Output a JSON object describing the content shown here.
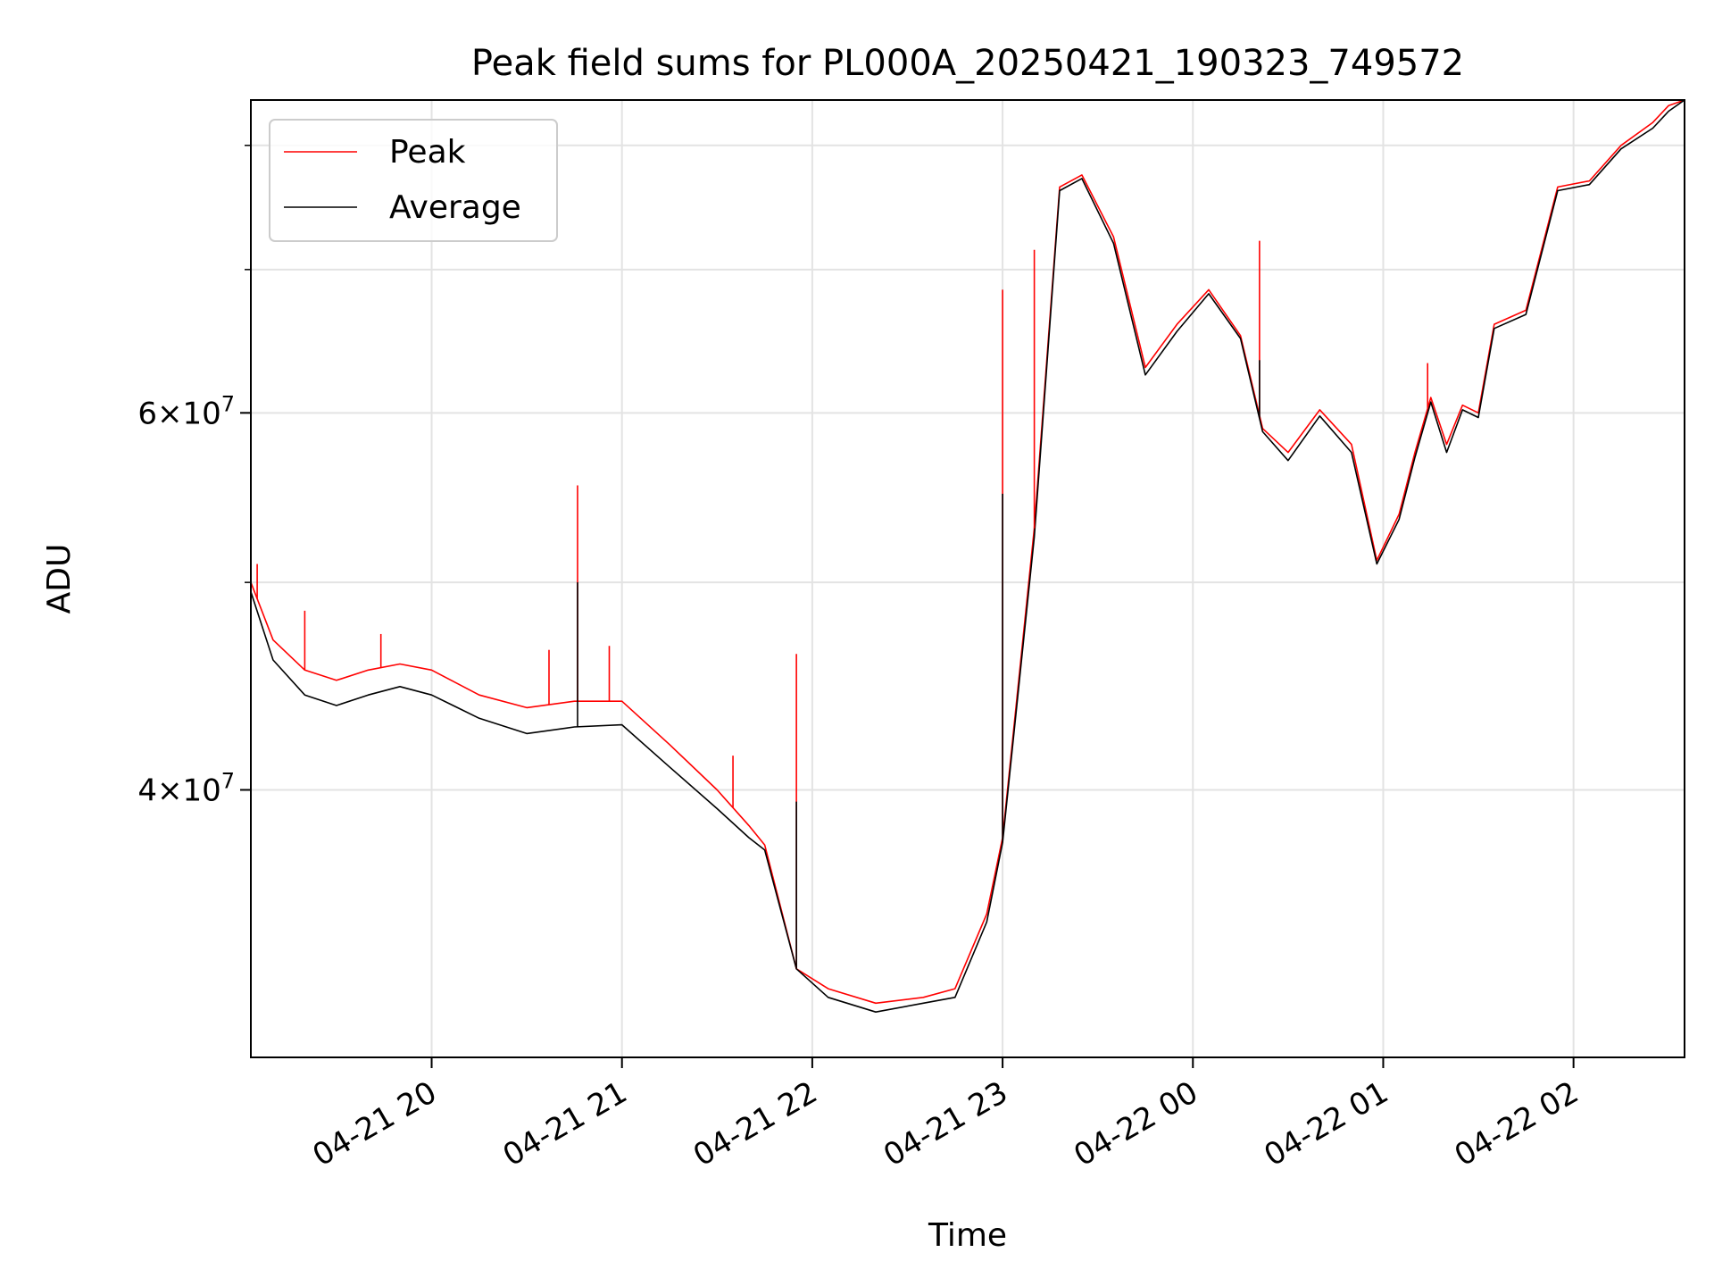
{
  "chart_data": {
    "type": "line",
    "title": "Peak field sums for PL000A_20250421_190323_749572",
    "xlabel": "Time",
    "ylabel": "ADU",
    "y_scale": "log",
    "ylim": [
      30000000,
      84000000
    ],
    "xlim": [
      "2025-04-21 19:03",
      "2025-04-22 02:35"
    ],
    "grid": true,
    "legend_position": "top-left",
    "x_ticks": [
      {
        "value": "2025-04-21 20:00",
        "label": "04-21 20"
      },
      {
        "value": "2025-04-21 21:00",
        "label": "04-21 21"
      },
      {
        "value": "2025-04-21 22:00",
        "label": "04-21 22"
      },
      {
        "value": "2025-04-21 23:00",
        "label": "04-21 23"
      },
      {
        "value": "2025-04-22 00:00",
        "label": "04-22 00"
      },
      {
        "value": "2025-04-22 01:00",
        "label": "04-22 01"
      },
      {
        "value": "2025-04-22 02:00",
        "label": "04-22 02"
      }
    ],
    "y_ticks_labeled": [
      {
        "value": 40000000,
        "mantissa": "4",
        "base": "10",
        "exponent": "7"
      },
      {
        "value": 60000000,
        "mantissa": "6",
        "base": "10",
        "exponent": "7"
      }
    ],
    "y_ticks_minor": [
      50000000,
      70000000,
      80000000
    ],
    "series": [
      {
        "name": "Peak",
        "color": "#ff0000",
        "x": [
          "2025-04-21 19:03",
          "2025-04-21 19:10",
          "2025-04-21 19:20",
          "2025-04-21 19:30",
          "2025-04-21 19:40",
          "2025-04-21 19:50",
          "2025-04-21 20:00",
          "2025-04-21 20:15",
          "2025-04-21 20:30",
          "2025-04-21 20:45",
          "2025-04-21 21:00",
          "2025-04-21 21:15",
          "2025-04-21 21:30",
          "2025-04-21 21:40",
          "2025-04-21 21:45",
          "2025-04-21 21:55",
          "2025-04-21 22:05",
          "2025-04-21 22:20",
          "2025-04-21 22:35",
          "2025-04-21 22:45",
          "2025-04-21 22:55",
          "2025-04-21 23:00",
          "2025-04-21 23:10",
          "2025-04-21 23:18",
          "2025-04-21 23:25",
          "2025-04-21 23:35",
          "2025-04-21 23:45",
          "2025-04-21 23:55",
          "2025-04-22 00:05",
          "2025-04-22 00:15",
          "2025-04-22 00:22",
          "2025-04-22 00:30",
          "2025-04-22 00:40",
          "2025-04-22 00:50",
          "2025-04-22 00:58",
          "2025-04-22 01:05",
          "2025-04-22 01:10",
          "2025-04-22 01:15",
          "2025-04-22 01:20",
          "2025-04-22 01:25",
          "2025-04-22 01:30",
          "2025-04-22 01:35",
          "2025-04-22 01:45",
          "2025-04-22 01:55",
          "2025-04-22 02:05",
          "2025-04-22 02:15",
          "2025-04-22 02:25",
          "2025-04-22 02:30",
          "2025-04-22 02:35"
        ],
        "values": [
          50000000,
          47000000,
          45500000,
          45000000,
          45500000,
          45800000,
          45500000,
          44300000,
          43700000,
          44000000,
          44000000,
          42000000,
          40000000,
          38500000,
          37700000,
          33000000,
          32300000,
          31800000,
          32000000,
          32300000,
          35000000,
          38000000,
          53000000,
          76500000,
          77500000,
          72500000,
          63000000,
          66000000,
          68500000,
          65200000,
          59000000,
          57500000,
          60200000,
          58000000,
          51200000,
          53800000,
          57500000,
          61000000,
          58000000,
          60500000,
          60000000,
          66000000,
          67000000,
          76500000,
          77000000,
          80000000,
          82000000,
          83500000,
          84000000
        ]
      },
      {
        "name": "Average",
        "color": "#000000",
        "x": [
          "2025-04-21 19:03",
          "2025-04-21 19:10",
          "2025-04-21 19:20",
          "2025-04-21 19:30",
          "2025-04-21 19:40",
          "2025-04-21 19:50",
          "2025-04-21 20:00",
          "2025-04-21 20:15",
          "2025-04-21 20:30",
          "2025-04-21 20:45",
          "2025-04-21 21:00",
          "2025-04-21 21:15",
          "2025-04-21 21:30",
          "2025-04-21 21:40",
          "2025-04-21 21:45",
          "2025-04-21 21:55",
          "2025-04-21 22:05",
          "2025-04-21 22:20",
          "2025-04-21 22:35",
          "2025-04-21 22:45",
          "2025-04-21 22:55",
          "2025-04-21 23:00",
          "2025-04-21 23:10",
          "2025-04-21 23:18",
          "2025-04-21 23:25",
          "2025-04-21 23:35",
          "2025-04-21 23:45",
          "2025-04-21 23:55",
          "2025-04-22 00:05",
          "2025-04-22 00:15",
          "2025-04-22 00:22",
          "2025-04-22 00:30",
          "2025-04-22 00:40",
          "2025-04-22 00:50",
          "2025-04-22 00:58",
          "2025-04-22 01:05",
          "2025-04-22 01:10",
          "2025-04-22 01:15",
          "2025-04-22 01:20",
          "2025-04-22 01:25",
          "2025-04-22 01:30",
          "2025-04-22 01:35",
          "2025-04-22 01:45",
          "2025-04-22 01:55",
          "2025-04-22 02:05",
          "2025-04-22 02:15",
          "2025-04-22 02:25",
          "2025-04-22 02:30",
          "2025-04-22 02:35"
        ],
        "values": [
          49500000,
          46000000,
          44300000,
          43800000,
          44300000,
          44700000,
          44300000,
          43200000,
          42500000,
          42800000,
          42900000,
          41000000,
          39200000,
          38000000,
          37500000,
          33000000,
          32000000,
          31500000,
          31800000,
          32000000,
          34700000,
          37800000,
          52500000,
          76200000,
          77200000,
          72000000,
          62500000,
          65500000,
          68200000,
          65000000,
          58800000,
          57000000,
          59800000,
          57500000,
          51000000,
          53500000,
          57200000,
          60700000,
          57500000,
          60200000,
          59700000,
          65700000,
          66700000,
          76200000,
          76700000,
          79700000,
          81500000,
          83000000,
          84000000
        ]
      }
    ],
    "spikes": [
      {
        "series": "Peak",
        "x": "2025-04-21 19:05",
        "value": 51000000
      },
      {
        "series": "Peak",
        "x": "2025-04-21 19:20",
        "value": 48500000
      },
      {
        "series": "Peak",
        "x": "2025-04-21 19:44",
        "value": 47300000
      },
      {
        "series": "Peak",
        "x": "2025-04-21 20:37",
        "value": 46500000
      },
      {
        "series": "Peak",
        "x": "2025-04-21 20:46",
        "value": 55500000
      },
      {
        "series": "Average",
        "x": "2025-04-21 20:46",
        "value": 50000000
      },
      {
        "series": "Peak",
        "x": "2025-04-21 20:56",
        "value": 46700000
      },
      {
        "series": "Peak",
        "x": "2025-04-21 21:35",
        "value": 41500000
      },
      {
        "series": "Peak",
        "x": "2025-04-21 21:55",
        "value": 46300000
      },
      {
        "series": "Average",
        "x": "2025-04-21 21:55",
        "value": 39500000
      },
      {
        "series": "Peak",
        "x": "2025-04-21 23:00",
        "value": 68500000
      },
      {
        "series": "Average",
        "x": "2025-04-21 23:00",
        "value": 55000000
      },
      {
        "series": "Peak",
        "x": "2025-04-21 23:10",
        "value": 71500000
      },
      {
        "series": "Peak",
        "x": "2025-04-22 00:21",
        "value": 72200000
      },
      {
        "series": "Average",
        "x": "2025-04-22 00:21",
        "value": 63500000
      },
      {
        "series": "Peak",
        "x": "2025-04-22 01:14",
        "value": 63300000
      }
    ]
  }
}
